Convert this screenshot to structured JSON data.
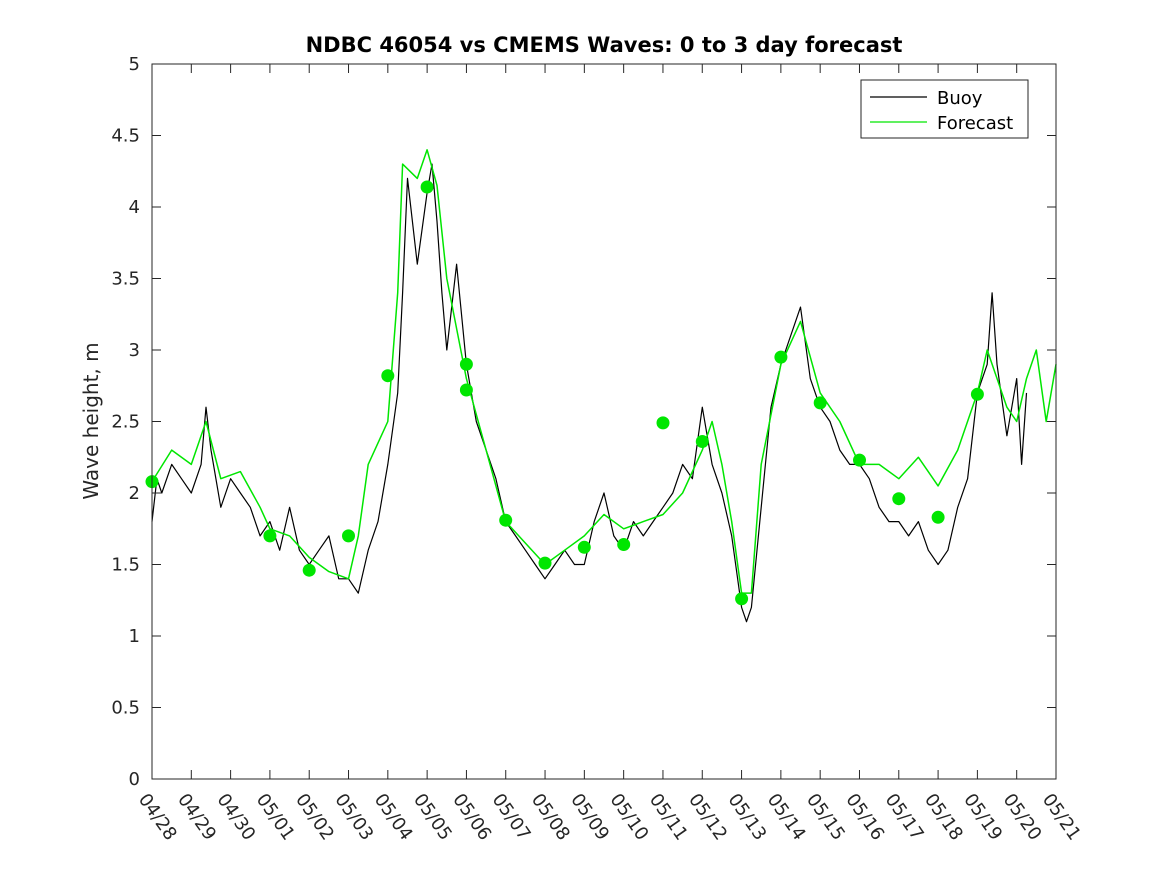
{
  "chart_data": {
    "type": "line",
    "title": "NDBC 46054 vs CMEMS Waves: 0 to 3 day forecast",
    "xlabel": "",
    "ylabel": "Wave height, m",
    "x_tick_labels": [
      "04/28",
      "04/29",
      "04/30",
      "05/01",
      "05/02",
      "05/03",
      "05/04",
      "05/05",
      "05/06",
      "05/07",
      "05/08",
      "05/09",
      "05/10",
      "05/11",
      "05/12",
      "05/13",
      "05/14",
      "05/15",
      "05/16",
      "05/17",
      "05/18",
      "05/19",
      "05/20",
      "05/21"
    ],
    "y_ticks": [
      "0",
      "0.5",
      "1",
      "1.5",
      "2",
      "2.5",
      "3",
      "3.5",
      "4",
      "4.5",
      "5"
    ],
    "xlim": [
      "04/28",
      "05/21"
    ],
    "ylim": [
      0,
      5
    ],
    "grid": false,
    "legend_position": "top-right",
    "legend": [
      "Buoy",
      "Forecast"
    ],
    "colors": {
      "buoy": "#000000",
      "forecast": "#00e600",
      "axis": "#262626"
    },
    "series": [
      {
        "name": "Buoy",
        "color": "#000000",
        "points": [
          [
            "04/28 00:00",
            1.8
          ],
          [
            "04/28 03:00",
            2.1
          ],
          [
            "04/28 06:00",
            2.0
          ],
          [
            "04/28 12:00",
            2.2
          ],
          [
            "04/28 18:00",
            2.1
          ],
          [
            "04/29 00:00",
            2.0
          ],
          [
            "04/29 06:00",
            2.2
          ],
          [
            "04/29 09:00",
            2.6
          ],
          [
            "04/29 12:00",
            2.3
          ],
          [
            "04/29 18:00",
            1.9
          ],
          [
            "04/30 00:00",
            2.1
          ],
          [
            "04/30 06:00",
            2.0
          ],
          [
            "04/30 12:00",
            1.9
          ],
          [
            "04/30 18:00",
            1.7
          ],
          [
            "05/01 00:00",
            1.8
          ],
          [
            "05/01 06:00",
            1.6
          ],
          [
            "05/01 12:00",
            1.9
          ],
          [
            "05/01 18:00",
            1.6
          ],
          [
            "05/02 00:00",
            1.5
          ],
          [
            "05/02 06:00",
            1.6
          ],
          [
            "05/02 12:00",
            1.7
          ],
          [
            "05/02 18:00",
            1.4
          ],
          [
            "05/03 00:00",
            1.4
          ],
          [
            "05/03 06:00",
            1.3
          ],
          [
            "05/03 12:00",
            1.6
          ],
          [
            "05/03 18:00",
            1.8
          ],
          [
            "05/04 00:00",
            2.2
          ],
          [
            "05/04 06:00",
            2.7
          ],
          [
            "05/04 09:00",
            3.4
          ],
          [
            "05/04 12:00",
            4.2
          ],
          [
            "05/04 15:00",
            3.9
          ],
          [
            "05/04 18:00",
            3.6
          ],
          [
            "05/05 00:00",
            4.1
          ],
          [
            "05/05 03:00",
            4.3
          ],
          [
            "05/05 06:00",
            3.9
          ],
          [
            "05/05 09:00",
            3.4
          ],
          [
            "05/05 12:00",
            3.0
          ],
          [
            "05/05 18:00",
            3.6
          ],
          [
            "05/06 00:00",
            2.9
          ],
          [
            "05/06 06:00",
            2.5
          ],
          [
            "05/06 12:00",
            2.3
          ],
          [
            "05/06 18:00",
            2.1
          ],
          [
            "05/07 00:00",
            1.8
          ],
          [
            "05/07 06:00",
            1.7
          ],
          [
            "05/07 12:00",
            1.6
          ],
          [
            "05/07 18:00",
            1.5
          ],
          [
            "05/08 00:00",
            1.4
          ],
          [
            "05/08 06:00",
            1.5
          ],
          [
            "05/08 12:00",
            1.6
          ],
          [
            "05/08 18:00",
            1.5
          ],
          [
            "05/09 00:00",
            1.5
          ],
          [
            "05/09 06:00",
            1.8
          ],
          [
            "05/09 12:00",
            2.0
          ],
          [
            "05/09 18:00",
            1.7
          ],
          [
            "05/10 00:00",
            1.6
          ],
          [
            "05/10 06:00",
            1.8
          ],
          [
            "05/10 12:00",
            1.7
          ],
          [
            "05/10 18:00",
            1.8
          ],
          [
            "05/11 00:00",
            1.9
          ],
          [
            "05/11 06:00",
            2.0
          ],
          [
            "05/11 12:00",
            2.2
          ],
          [
            "05/11 18:00",
            2.1
          ],
          [
            "05/12 00:00",
            2.6
          ],
          [
            "05/12 06:00",
            2.2
          ],
          [
            "05/12 12:00",
            2.0
          ],
          [
            "05/12 18:00",
            1.7
          ],
          [
            "05/13 00:00",
            1.2
          ],
          [
            "05/13 03:00",
            1.1
          ],
          [
            "05/13 06:00",
            1.2
          ],
          [
            "05/13 12:00",
            1.9
          ],
          [
            "05/13 18:00",
            2.6
          ],
          [
            "05/14 00:00",
            2.9
          ],
          [
            "05/14 06:00",
            3.1
          ],
          [
            "05/14 12:00",
            3.3
          ],
          [
            "05/14 18:00",
            2.8
          ],
          [
            "05/15 00:00",
            2.6
          ],
          [
            "05/15 06:00",
            2.5
          ],
          [
            "05/15 12:00",
            2.3
          ],
          [
            "05/15 18:00",
            2.2
          ],
          [
            "05/16 00:00",
            2.2
          ],
          [
            "05/16 06:00",
            2.1
          ],
          [
            "05/16 12:00",
            1.9
          ],
          [
            "05/16 18:00",
            1.8
          ],
          [
            "05/17 00:00",
            1.8
          ],
          [
            "05/17 06:00",
            1.7
          ],
          [
            "05/17 12:00",
            1.8
          ],
          [
            "05/17 18:00",
            1.6
          ],
          [
            "05/18 00:00",
            1.5
          ],
          [
            "05/18 06:00",
            1.6
          ],
          [
            "05/18 12:00",
            1.9
          ],
          [
            "05/18 18:00",
            2.1
          ],
          [
            "05/19 00:00",
            2.7
          ],
          [
            "05/19 06:00",
            2.9
          ],
          [
            "05/19 09:00",
            3.4
          ],
          [
            "05/19 12:00",
            2.9
          ],
          [
            "05/19 18:00",
            2.4
          ],
          [
            "05/20 00:00",
            2.8
          ],
          [
            "05/20 03:00",
            2.2
          ],
          [
            "05/20 06:00",
            2.7
          ]
        ]
      },
      {
        "name": "Forecast",
        "color": "#00e600",
        "points": [
          [
            "04/28 00:00",
            2.08
          ],
          [
            "04/28 12:00",
            2.3
          ],
          [
            "04/29 00:00",
            2.2
          ],
          [
            "04/29 09:00",
            2.5
          ],
          [
            "04/29 18:00",
            2.1
          ],
          [
            "04/30 06:00",
            2.15
          ],
          [
            "04/30 18:00",
            1.9
          ],
          [
            "05/01 00:00",
            1.75
          ],
          [
            "05/01 12:00",
            1.7
          ],
          [
            "05/02 00:00",
            1.55
          ],
          [
            "05/02 12:00",
            1.45
          ],
          [
            "05/03 00:00",
            1.4
          ],
          [
            "05/03 06:00",
            1.7
          ],
          [
            "05/03 12:00",
            2.2
          ],
          [
            "05/04 00:00",
            2.5
          ],
          [
            "05/04 06:00",
            3.4
          ],
          [
            "05/04 09:00",
            4.3
          ],
          [
            "05/04 18:00",
            4.2
          ],
          [
            "05/05 00:00",
            4.4
          ],
          [
            "05/05 06:00",
            4.15
          ],
          [
            "05/05 12:00",
            3.5
          ],
          [
            "05/06 00:00",
            2.8
          ],
          [
            "05/06 12:00",
            2.3
          ],
          [
            "05/07 00:00",
            1.8
          ],
          [
            "05/07 12:00",
            1.65
          ],
          [
            "05/08 00:00",
            1.5
          ],
          [
            "05/08 12:00",
            1.6
          ],
          [
            "05/09 00:00",
            1.7
          ],
          [
            "05/09 12:00",
            1.85
          ],
          [
            "05/10 00:00",
            1.75
          ],
          [
            "05/10 12:00",
            1.8
          ],
          [
            "05/11 00:00",
            1.85
          ],
          [
            "05/11 12:00",
            2.0
          ],
          [
            "05/12 00:00",
            2.3
          ],
          [
            "05/12 06:00",
            2.5
          ],
          [
            "05/12 12:00",
            2.2
          ],
          [
            "05/12 18:00",
            1.8
          ],
          [
            "05/13 00:00",
            1.3
          ],
          [
            "05/13 06:00",
            1.3
          ],
          [
            "05/13 12:00",
            2.2
          ],
          [
            "05/14 00:00",
            2.9
          ],
          [
            "05/14 12:00",
            3.2
          ],
          [
            "05/15 00:00",
            2.7
          ],
          [
            "05/15 12:00",
            2.5
          ],
          [
            "05/16 00:00",
            2.2
          ],
          [
            "05/16 12:00",
            2.2
          ],
          [
            "05/17 00:00",
            2.1
          ],
          [
            "05/17 12:00",
            2.25
          ],
          [
            "05/18 00:00",
            2.05
          ],
          [
            "05/18 12:00",
            2.3
          ],
          [
            "05/19 00:00",
            2.7
          ],
          [
            "05/19 06:00",
            3.0
          ],
          [
            "05/19 18:00",
            2.6
          ],
          [
            "05/20 00:00",
            2.5
          ],
          [
            "05/20 06:00",
            2.8
          ],
          [
            "05/20 12:00",
            3.0
          ],
          [
            "05/20 18:00",
            2.5
          ],
          [
            "05/21 00:00",
            2.9
          ]
        ]
      }
    ],
    "forecast_markers": [
      [
        "04/28 00:00",
        2.08
      ],
      [
        "05/01 00:00",
        1.7
      ],
      [
        "05/02 00:00",
        1.46
      ],
      [
        "05/03 00:00",
        1.7
      ],
      [
        "05/04 00:00",
        2.82
      ],
      [
        "05/05 00:00",
        4.14
      ],
      [
        "05/06 00:00",
        2.9
      ],
      [
        "05/06 00:00",
        2.72
      ],
      [
        "05/07 00:00",
        1.81
      ],
      [
        "05/08 00:00",
        1.51
      ],
      [
        "05/09 00:00",
        1.62
      ],
      [
        "05/10 00:00",
        1.64
      ],
      [
        "05/11 00:00",
        2.49
      ],
      [
        "05/12 00:00",
        2.36
      ],
      [
        "05/13 00:00",
        1.26
      ],
      [
        "05/14 00:00",
        2.95
      ],
      [
        "05/15 00:00",
        2.63
      ],
      [
        "05/16 00:00",
        2.23
      ],
      [
        "05/17 00:00",
        1.96
      ],
      [
        "05/18 00:00",
        1.83
      ],
      [
        "05/19 00:00",
        2.69
      ]
    ]
  }
}
